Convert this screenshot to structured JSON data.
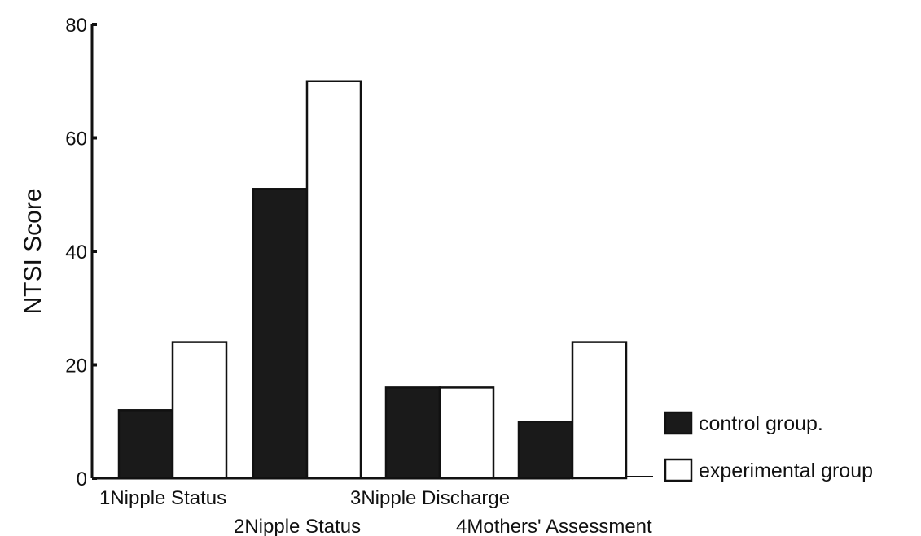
{
  "chart_data": {
    "type": "bar",
    "ylabel": "NTSI Score",
    "xlabel": "",
    "ylim": [
      0,
      80
    ],
    "yticks": [
      "0",
      "20",
      "40",
      "60",
      "80"
    ],
    "categories": [
      "1Nipple Status",
      "2Nipple Status",
      "3Nipple Discharge",
      "4Mothers' Assessment"
    ],
    "series": [
      {
        "name": "control group.",
        "color": "#1a1a1a",
        "values": [
          12,
          51,
          16,
          10
        ]
      },
      {
        "name": "experimental group",
        "color": "#ffffff",
        "values": [
          24,
          70,
          16,
          24
        ]
      }
    ],
    "legend_position": "bottom-right",
    "grid": false
  }
}
